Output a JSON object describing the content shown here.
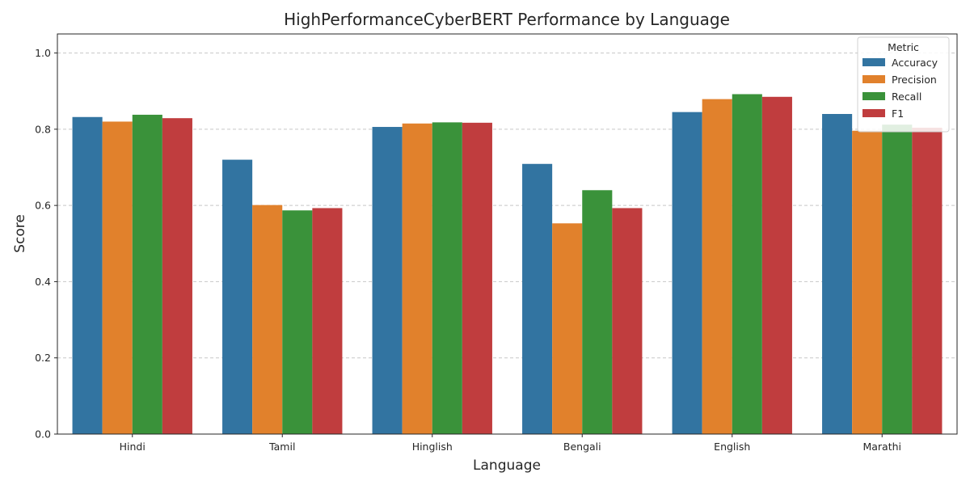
{
  "chart_data": {
    "type": "bar",
    "title": "HighPerformanceCyberBERT Performance by Language",
    "xlabel": "Language",
    "ylabel": "Score",
    "ylim": [
      0,
      1.05
    ],
    "yticks": [
      0.0,
      0.2,
      0.4,
      0.6,
      0.8,
      1.0
    ],
    "ytick_labels": [
      "0.0",
      "0.2",
      "0.4",
      "0.6",
      "0.8",
      "1.0"
    ],
    "grid": "y-dashed",
    "legend": {
      "title": "Metric",
      "placement": "top-right"
    },
    "categories": [
      "Hindi",
      "Tamil",
      "Hinglish",
      "Bengali",
      "English",
      "Marathi"
    ],
    "series": [
      {
        "name": "Accuracy",
        "color": "#3274a1",
        "values": [
          0.832,
          0.72,
          0.806,
          0.709,
          0.845,
          0.84
        ]
      },
      {
        "name": "Precision",
        "color": "#e1812c",
        "values": [
          0.82,
          0.601,
          0.815,
          0.553,
          0.879,
          0.796
        ]
      },
      {
        "name": "Recall",
        "color": "#3a923a",
        "values": [
          0.838,
          0.587,
          0.818,
          0.64,
          0.892,
          0.812
        ]
      },
      {
        "name": "F1",
        "color": "#c03d3e",
        "values": [
          0.829,
          0.593,
          0.817,
          0.593,
          0.885,
          0.804
        ]
      }
    ]
  }
}
